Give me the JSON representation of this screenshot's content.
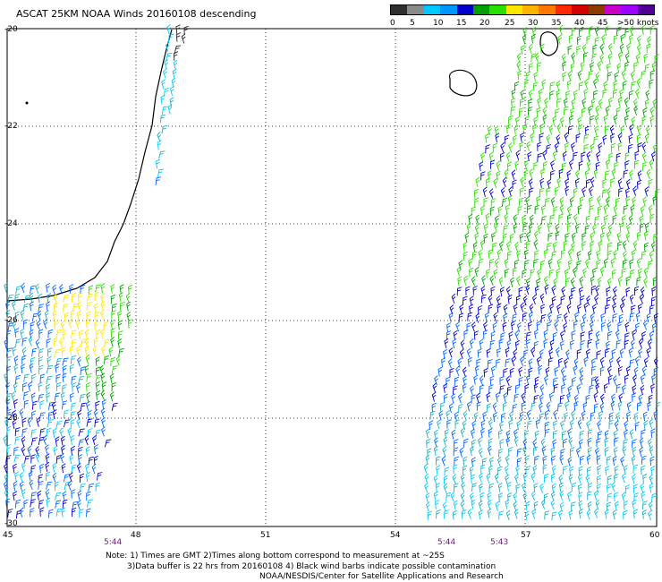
{
  "title": "ASCAT 25KM NOAA Winds 20160108 descending",
  "legend": {
    "labels": [
      "0",
      "5",
      "10",
      "15",
      "20",
      "25",
      "30",
      "35",
      "40",
      "45",
      ">50 knots"
    ],
    "colors": [
      "#2f2f2f",
      "#8a8a8a",
      "#00c8ff",
      "#0096ff",
      "#0000c8",
      "#00a000",
      "#28e000",
      "#ffe600",
      "#ffb400",
      "#ff7800",
      "#ff2800",
      "#d20000",
      "#8c3c00",
      "#c800c8",
      "#a000ff",
      "#500096"
    ]
  },
  "axes": {
    "lat_labels": [
      "-20",
      "-22",
      "-24",
      "-26",
      "-28",
      "-30"
    ],
    "lon_labels": [
      "45",
      "48",
      "51",
      "54",
      "57",
      "60"
    ]
  },
  "pass_times": [
    "5:44",
    "5:44",
    "5:43"
  ],
  "notes": [
    "Note: 1) Times are GMT 2)Times along bottom correspond to measurement at ~25S",
    "3)Data buffer is 22 hrs from 20160108 4) Black wind barbs indicate possible contamination",
    "NOAA/NESDIS/Center for Satellite Applications and Research"
  ]
}
